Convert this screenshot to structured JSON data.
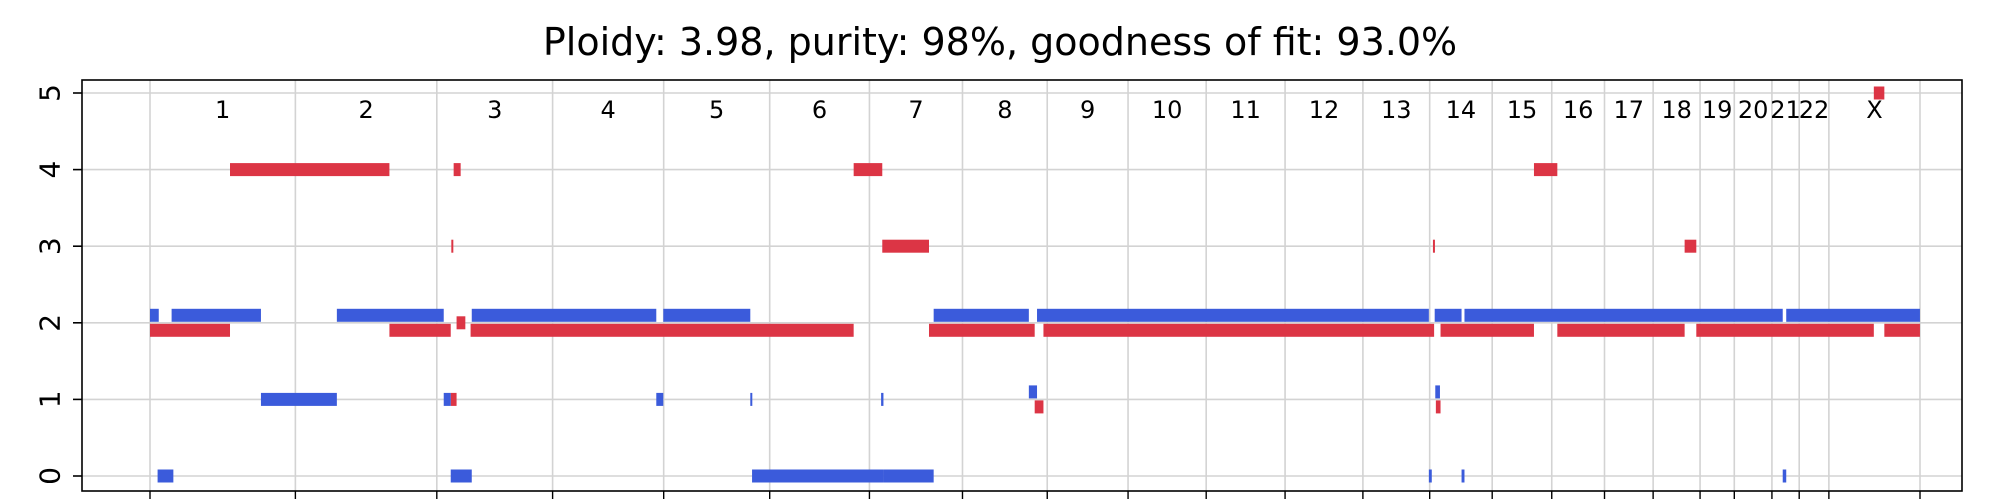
{
  "chart_data": {
    "type": "segment",
    "title": "Ploidy: 3.98, purity: 98%, goodness of fit: 93.0%",
    "ylim": [
      -0.2,
      5.15
    ],
    "y_ticks": [
      "0",
      "1",
      "2",
      "3",
      "4",
      "5"
    ],
    "grid": true,
    "chromosome_boundaries": [
      0,
      248.96,
      491.15,
      689.45,
      879.67,
      1061.21,
      1232.02,
      1391.36,
      1536.5,
      1674.89,
      1808.69,
      1943.77,
      2077.05,
      2191.42,
      2298.46,
      2400.45,
      2490.8,
      2574.06,
      2654.43,
      2713.05,
      2777.5,
      2824.21,
      2875.03,
      3031.07
    ],
    "chromosomes": [
      "1",
      "2",
      "3",
      "4",
      "5",
      "6",
      "7",
      "8",
      "9",
      "10",
      "11",
      "12",
      "13",
      "14",
      "15",
      "16",
      "17",
      "18",
      "19",
      "20",
      "21",
      "22",
      "X"
    ],
    "colors": {
      "major": "#dc3545",
      "minor": "#3b5bdb"
    },
    "series": [
      {
        "role": "major",
        "segments": [
          {
            "start": 0,
            "end": 137,
            "cn": 2
          },
          {
            "start": 137,
            "end": 410,
            "cn": 4
          },
          {
            "start": 410,
            "end": 515,
            "cn": 2
          },
          {
            "start": 515,
            "end": 525,
            "cn": 1
          },
          {
            "start": 516,
            "end": 519,
            "cn": 3
          },
          {
            "start": 520,
            "end": 532,
            "cn": 4
          },
          {
            "start": 525,
            "end": 540,
            "cn": 2
          },
          {
            "start": 549,
            "end": 1205,
            "cn": 2
          },
          {
            "start": 1205,
            "end": 1254,
            "cn": 4
          },
          {
            "start": 1254,
            "end": 1334,
            "cn": 3
          },
          {
            "start": 1334,
            "end": 1515,
            "cn": 2
          },
          {
            "start": 1515,
            "end": 1530,
            "cn": 1
          },
          {
            "start": 1530,
            "end": 2199,
            "cn": 2
          },
          {
            "start": 2197,
            "end": 2200,
            "cn": 3
          },
          {
            "start": 2202,
            "end": 2210,
            "cn": 1
          },
          {
            "start": 2210,
            "end": 2370,
            "cn": 2
          },
          {
            "start": 2370,
            "end": 2410,
            "cn": 4
          },
          {
            "start": 2410,
            "end": 2628,
            "cn": 2
          },
          {
            "start": 2628,
            "end": 2648,
            "cn": 3
          },
          {
            "start": 2648,
            "end": 2952,
            "cn": 2
          },
          {
            "start": 2952,
            "end": 2970,
            "cn": 5
          },
          {
            "start": 2970,
            "end": 3031,
            "cn": 2
          }
        ]
      },
      {
        "role": "minor",
        "segments": [
          {
            "start": 0,
            "end": 15,
            "cn": 2
          },
          {
            "start": 13,
            "end": 40,
            "cn": 0
          },
          {
            "start": 37,
            "end": 190,
            "cn": 2
          },
          {
            "start": 190,
            "end": 320,
            "cn": 1
          },
          {
            "start": 320,
            "end": 503,
            "cn": 2
          },
          {
            "start": 503,
            "end": 515,
            "cn": 1
          },
          {
            "start": 515,
            "end": 551,
            "cn": 0
          },
          {
            "start": 551,
            "end": 867,
            "cn": 2
          },
          {
            "start": 867,
            "end": 879,
            "cn": 1
          },
          {
            "start": 879,
            "end": 1028,
            "cn": 2
          },
          {
            "start": 1028,
            "end": 1031,
            "cn": 1
          },
          {
            "start": 1031,
            "end": 1256,
            "cn": 0
          },
          {
            "start": 1252,
            "end": 1256,
            "cn": 1
          },
          {
            "start": 1256,
            "end": 1342,
            "cn": 0
          },
          {
            "start": 1342,
            "end": 1505,
            "cn": 2
          },
          {
            "start": 1505,
            "end": 1519,
            "cn": 1
          },
          {
            "start": 1519,
            "end": 2190,
            "cn": 2
          },
          {
            "start": 2190,
            "end": 2195,
            "cn": 0
          },
          {
            "start": 2201,
            "end": 2209,
            "cn": 1
          },
          {
            "start": 2200,
            "end": 2246,
            "cn": 2
          },
          {
            "start": 2246,
            "end": 2251,
            "cn": 0
          },
          {
            "start": 2251,
            "end": 2796,
            "cn": 2
          },
          {
            "start": 2796,
            "end": 2802,
            "cn": 0
          },
          {
            "start": 2802,
            "end": 3031,
            "cn": 2
          }
        ]
      }
    ]
  }
}
